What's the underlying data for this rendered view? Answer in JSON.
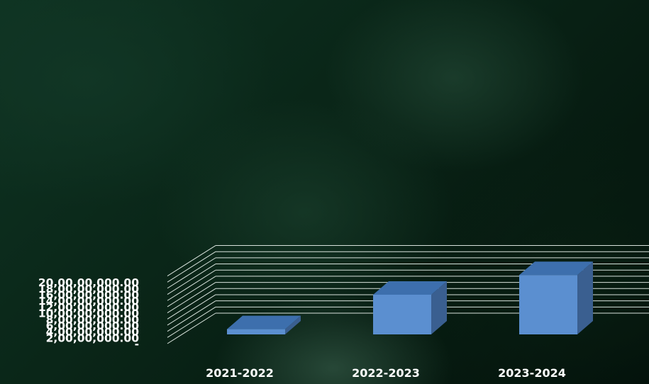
{
  "chart_data": {
    "type": "bar",
    "style": "3d-column",
    "categories": [
      "2021-2022",
      "2022-2023",
      "2023-2024"
    ],
    "values": [
      24000000,
      136000000,
      200000000
    ],
    "ylim": [
      0,
      220000000
    ],
    "y_ticks": [
      {
        "value": 0,
        "label": "-"
      },
      {
        "value": 20000000,
        "label": "2,00,00,000.00"
      },
      {
        "value": 40000000,
        "label": "4,00,00,000.00"
      },
      {
        "value": 60000000,
        "label": "6,00,00,000.00"
      },
      {
        "value": 80000000,
        "label": "8,00,00,000.00"
      },
      {
        "value": 100000000,
        "label": "10,00,00,000.00"
      },
      {
        "value": 120000000,
        "label": "12,00,00,000.00"
      },
      {
        "value": 140000000,
        "label": "14,00,00,000.00"
      },
      {
        "value": 160000000,
        "label": "16,00,00,000.00"
      },
      {
        "value": 180000000,
        "label": "18,00,00,000.00"
      },
      {
        "value": 200000000,
        "label": "20,00,00,000.00"
      }
    ],
    "grid": true,
    "colors": {
      "bar_front": "#5b8fd0",
      "bar_top": "#3d6fad",
      "bar_side": "#3a5f90",
      "grid": "#d8e2dc",
      "text": "#ffffff"
    }
  }
}
